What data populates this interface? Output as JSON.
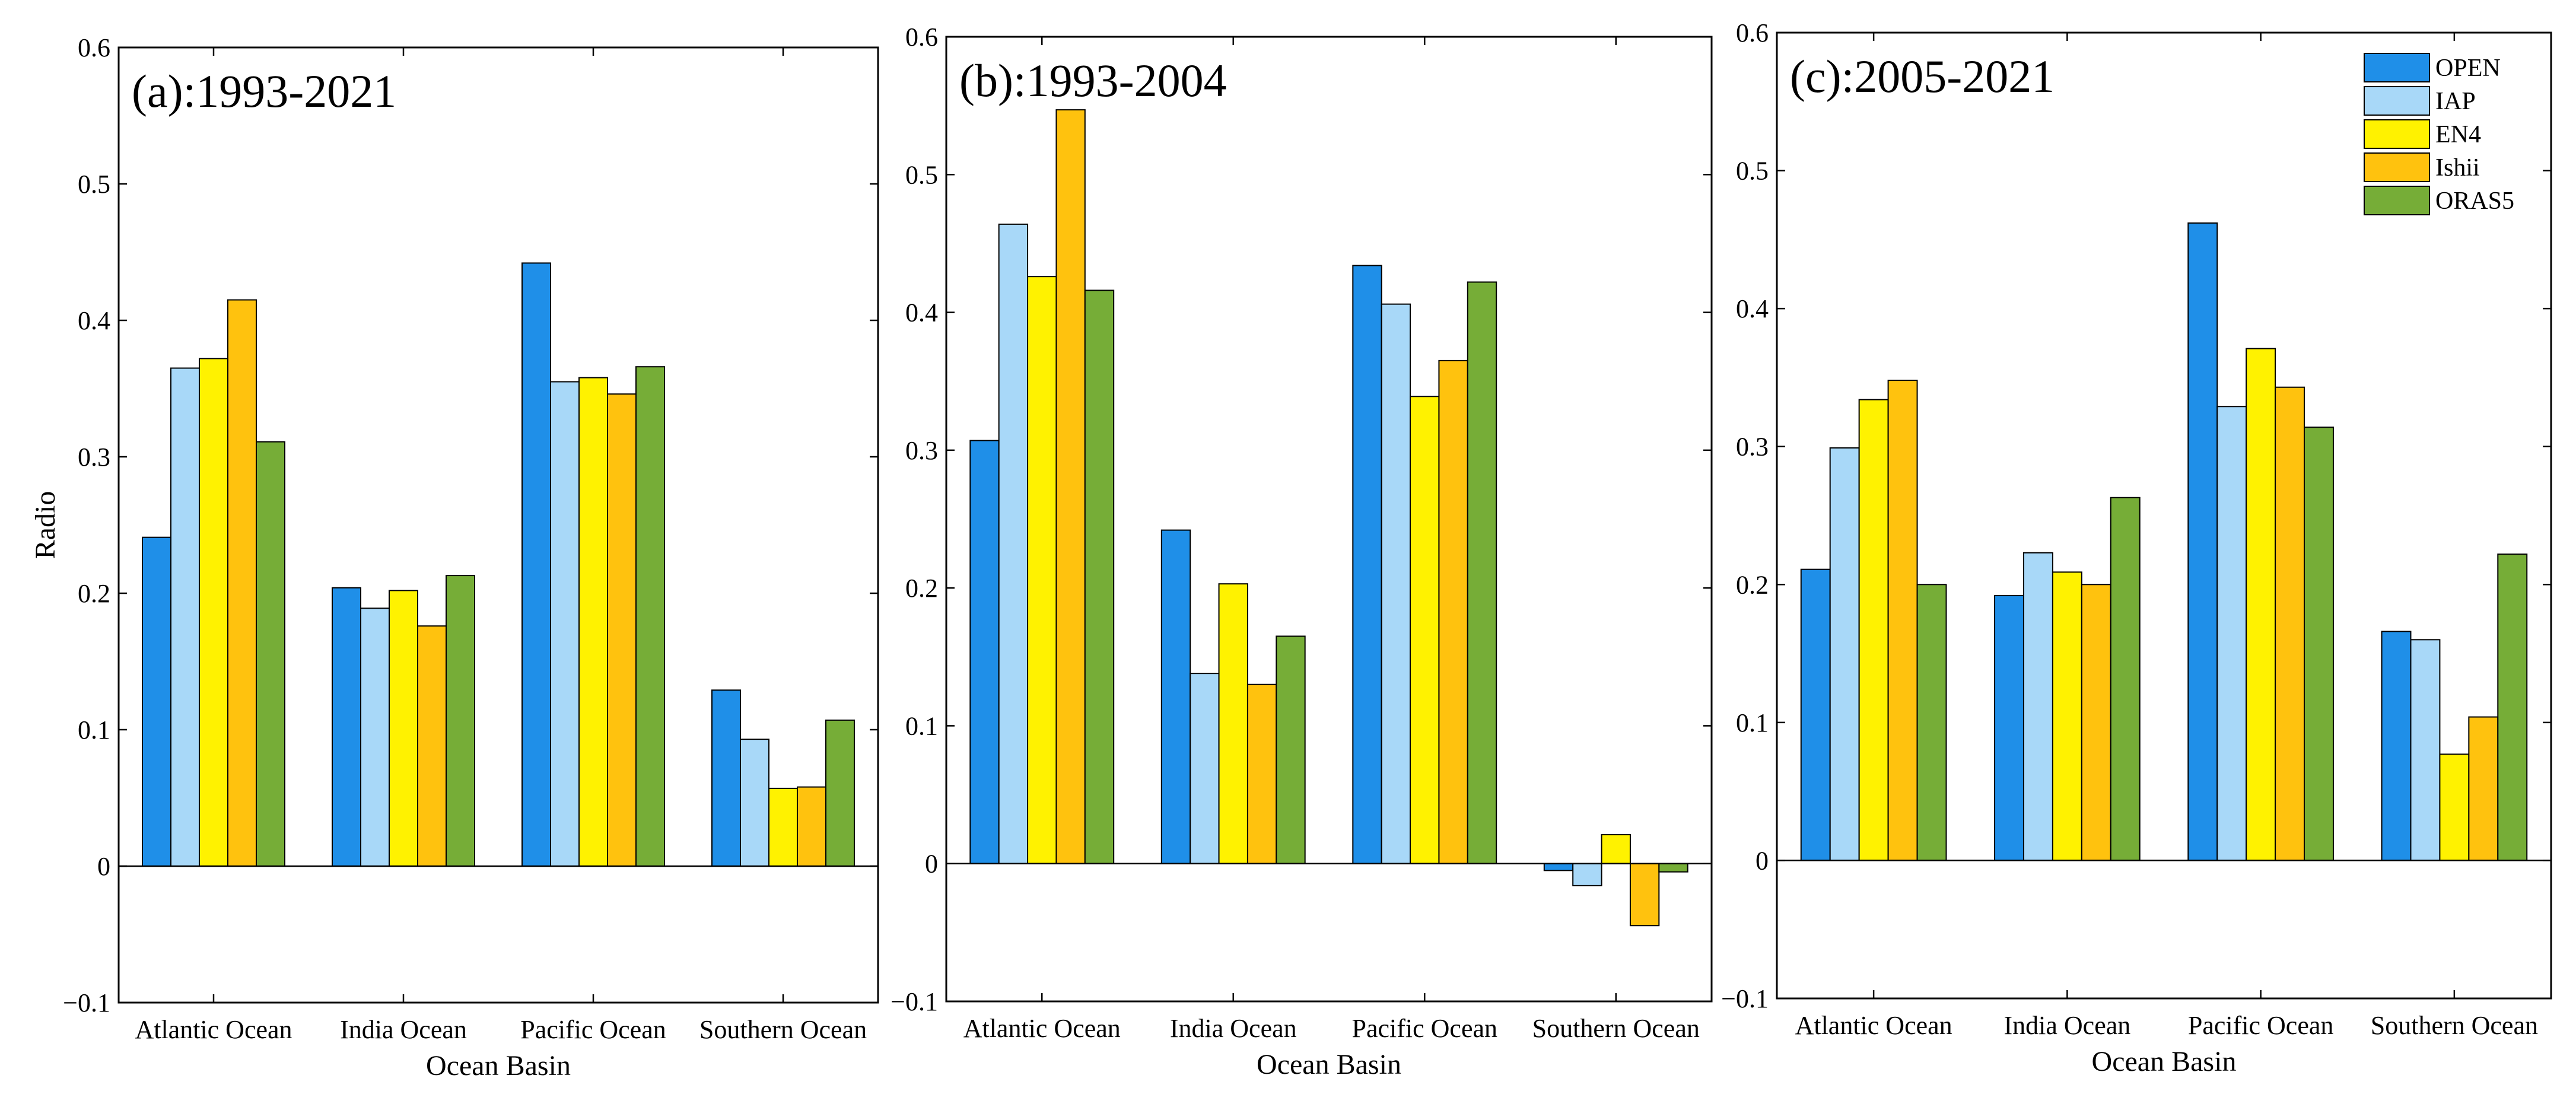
{
  "chart_data": [
    {
      "type": "bar",
      "title": "(a):1993-2021",
      "xlabel": "Ocean Basin",
      "ylabel": "Radio",
      "ylim": [
        -0.1,
        0.6
      ],
      "yticks": [
        "−0.1",
        "0",
        "0.1",
        "0.2",
        "0.3",
        "0.4",
        "0.5",
        "0.6"
      ],
      "categories": [
        "Atlantic Ocean",
        "India Ocean",
        "Pacific Ocean",
        "Southern Ocean"
      ],
      "series": [
        {
          "name": "OPEN",
          "values": [
            0.241,
            0.204,
            0.442,
            0.129
          ]
        },
        {
          "name": "IAP",
          "values": [
            0.365,
            0.189,
            0.355,
            0.093
          ]
        },
        {
          "name": "EN4",
          "values": [
            0.372,
            0.202,
            0.358,
            0.057
          ]
        },
        {
          "name": "Ishii",
          "values": [
            0.415,
            0.176,
            0.346,
            0.058
          ]
        },
        {
          "name": "ORAS5",
          "values": [
            0.311,
            0.213,
            0.366,
            0.107
          ]
        }
      ]
    },
    {
      "type": "bar",
      "title": "(b):1993-2004",
      "xlabel": "Ocean Basin",
      "ylabel": "",
      "ylim": [
        -0.1,
        0.6
      ],
      "yticks": [
        "−0.1",
        "0",
        "0.1",
        "0.2",
        "0.3",
        "0.4",
        "0.5",
        "0.6"
      ],
      "categories": [
        "Atlantic Ocean",
        "India Ocean",
        "Pacific Ocean",
        "Southern Ocean"
      ],
      "series": [
        {
          "name": "OPEN",
          "values": [
            0.307,
            0.242,
            0.434,
            -0.005
          ]
        },
        {
          "name": "IAP",
          "values": [
            0.464,
            0.138,
            0.406,
            -0.016
          ]
        },
        {
          "name": "EN4",
          "values": [
            0.426,
            0.203,
            0.339,
            0.021
          ]
        },
        {
          "name": "Ishii",
          "values": [
            0.547,
            0.13,
            0.365,
            -0.045
          ]
        },
        {
          "name": "ORAS5",
          "values": [
            0.416,
            0.165,
            0.422,
            -0.006
          ]
        }
      ]
    },
    {
      "type": "bar",
      "title": "(c):2005-2021",
      "xlabel": "Ocean Basin",
      "ylabel": "",
      "ylim": [
        -0.1,
        0.6
      ],
      "yticks": [
        "−0.1",
        "0",
        "0.1",
        "0.2",
        "0.3",
        "0.4",
        "0.5",
        "0.6"
      ],
      "categories": [
        "Atlantic Ocean",
        "India Ocean",
        "Pacific Ocean",
        "Southern Ocean"
      ],
      "legend_position": "top-right",
      "series": [
        {
          "name": "OPEN",
          "values": [
            0.211,
            0.192,
            0.462,
            0.166
          ]
        },
        {
          "name": "IAP",
          "values": [
            0.299,
            0.223,
            0.329,
            0.16
          ]
        },
        {
          "name": "EN4",
          "values": [
            0.334,
            0.209,
            0.371,
            0.077
          ]
        },
        {
          "name": "Ishii",
          "values": [
            0.348,
            0.2,
            0.343,
            0.104
          ]
        },
        {
          "name": "ORAS5",
          "values": [
            0.2,
            0.263,
            0.314,
            0.222
          ]
        }
      ]
    }
  ],
  "colors": {
    "OPEN": "#1f8fe8",
    "IAP": "#a8d8f8",
    "EN4": "#fff200",
    "Ishii": "#ffc20e",
    "ORAS5": "#76ad37"
  }
}
